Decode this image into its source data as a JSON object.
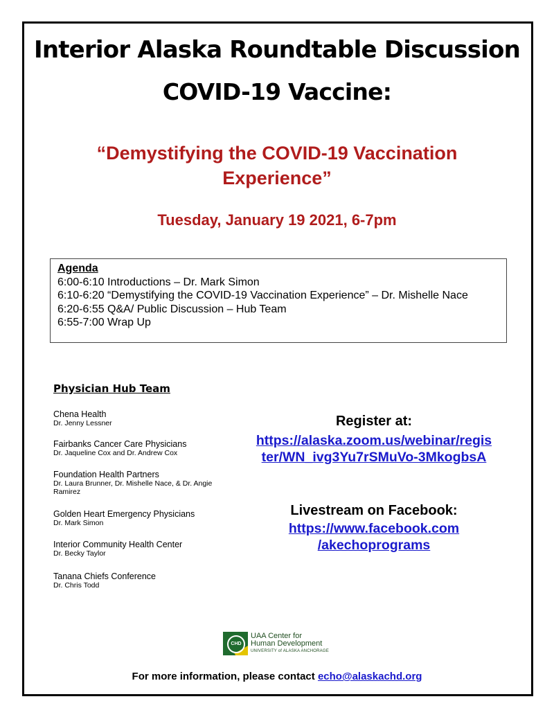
{
  "title_line1": "Interior Alaska Roundtable Discussion",
  "title_line2": "COVID-19 Vaccine:",
  "subtitle_line1": "“Demystifying the COVID-19 Vaccination",
  "subtitle_line2": "Experience”",
  "date": "Tuesday, January 19 2021, 6-7pm",
  "agenda": {
    "heading": "Agenda",
    "items": [
      "6:00-6:10 Introductions – Dr. Mark Simon",
      "6:10-6:20 “Demystifying the COVID-19 Vaccination Experience” – Dr. Mishelle Nace",
      "6:20-6:55 Q&A/ Public Discussion – Hub Team",
      "6:55-7:00 Wrap Up"
    ]
  },
  "hub": {
    "heading": "Physician Hub Team",
    "orgs": [
      {
        "name": "Chena Health",
        "doctors": "Dr. Jenny Lessner"
      },
      {
        "name": "Fairbanks Cancer Care Physicians",
        "doctors": "Dr. Jaqueline Cox and Dr. Andrew Cox"
      },
      {
        "name": "Foundation Health Partners",
        "doctors": "Dr. Laura Brunner, Dr. Mishelle Nace, & Dr. Angie Ramirez"
      },
      {
        "name": "Golden Heart Emergency Physicians",
        "doctors": "Dr. Mark Simon"
      },
      {
        "name": "Interior Community Health Center",
        "doctors": "Dr. Becky Taylor"
      },
      {
        "name": "Tanana Chiefs Conference",
        "doctors": "Dr. Chris Todd"
      }
    ]
  },
  "register": {
    "label": "Register at:",
    "link_line1": "https://alaska.zoom.us/webinar/regis",
    "link_line2": "ter/WN_ivg3Yu7rSMuVo-3MkogbsA"
  },
  "livestream": {
    "label": "Livestream on Facebook:",
    "link_line1": "https://www.facebook.com",
    "link_line2": "/akechoprograms"
  },
  "logo": {
    "mark": "CHD",
    "line1": "UAA Center for",
    "line2": "Human Development",
    "line3": "UNIVERSITY of ALASKA ANCHORAGE",
    "colors": {
      "green": "#1f6b2e",
      "yellow": "#e4c400"
    }
  },
  "footer": {
    "text": "For more information, please contact ",
    "email": "echo@alaskachd.org"
  },
  "colors": {
    "accent_red": "#b01c1c",
    "link_blue": "#1a1acc"
  }
}
